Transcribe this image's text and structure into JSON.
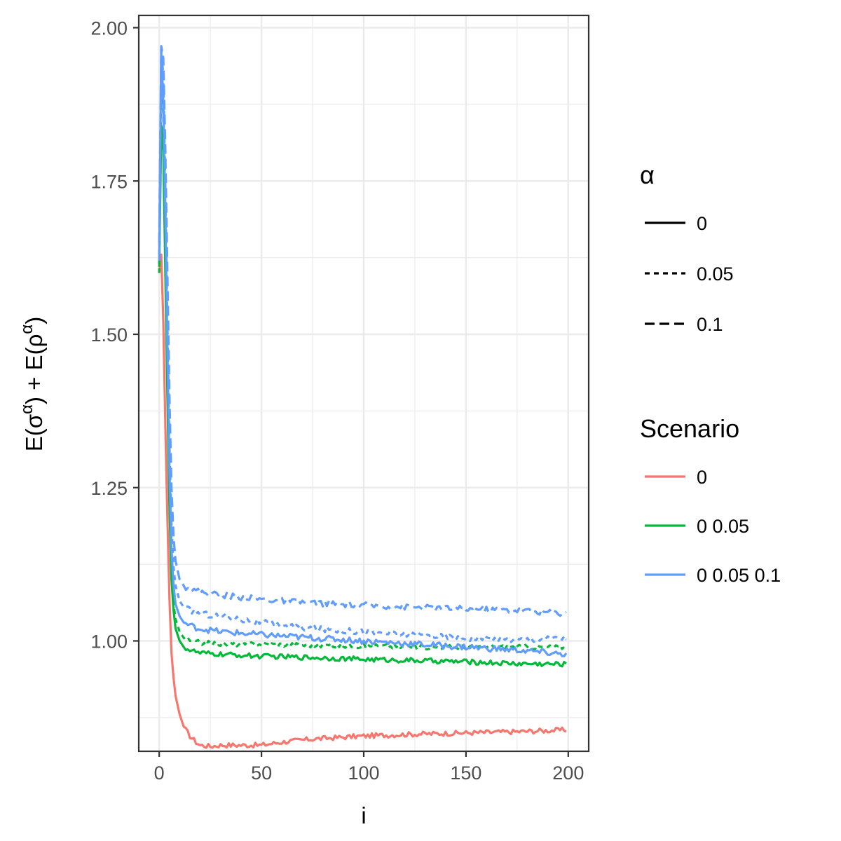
{
  "chart_data": {
    "type": "line",
    "xlabel": "i",
    "ylabel": "E(σ^α) + E(ρ^α)",
    "xlim": [
      -10,
      210
    ],
    "ylim": [
      0.82,
      2.02
    ],
    "x_ticks": [
      0,
      50,
      100,
      150,
      200
    ],
    "x_tick_labels": [
      "0",
      "50",
      "100",
      "150",
      "200"
    ],
    "y_ticks": [
      1.0,
      1.25,
      1.5,
      1.75,
      2.0
    ],
    "y_tick_labels": [
      "1.00",
      "1.25",
      "1.50",
      "1.75",
      "2.00"
    ],
    "grid": true,
    "legend_placement": "right",
    "legends": [
      {
        "title": "α",
        "entries": [
          {
            "label": "0",
            "dash": "solid"
          },
          {
            "label": "0.05",
            "dash": "dotted"
          },
          {
            "label": "0.1",
            "dash": "dashed"
          }
        ]
      },
      {
        "title": "Scenario",
        "entries": [
          {
            "label": "0",
            "color": "#F8766D"
          },
          {
            "label": "0 0.05",
            "color": "#00BA38"
          },
          {
            "label": "0 0.05 0.1",
            "color": "#619CFF"
          }
        ]
      }
    ],
    "series": [
      {
        "scenario": "0",
        "alpha": "0",
        "color": "#F8766D",
        "dash": "solid",
        "x": [
          0,
          1,
          2,
          3,
          4,
          5,
          6,
          7,
          8,
          10,
          12,
          15,
          18,
          20,
          25,
          30,
          40,
          50,
          60,
          75,
          100,
          125,
          150,
          175,
          199
        ],
        "y": [
          1.6,
          1.63,
          1.52,
          1.35,
          1.2,
          1.07,
          0.98,
          0.94,
          0.91,
          0.88,
          0.86,
          0.845,
          0.835,
          0.83,
          0.828,
          0.83,
          0.83,
          0.83,
          0.835,
          0.84,
          0.845,
          0.848,
          0.85,
          0.852,
          0.855
        ],
        "noise": 0.004
      },
      {
        "scenario": "0 0.05",
        "alpha": "0",
        "color": "#00BA38",
        "dash": "solid",
        "x": [
          0,
          1,
          2,
          3,
          4,
          5,
          6,
          7,
          8,
          10,
          12,
          15,
          20,
          30,
          50,
          75,
          100,
          125,
          150,
          175,
          199
        ],
        "y": [
          1.61,
          1.84,
          1.8,
          1.6,
          1.4,
          1.22,
          1.1,
          1.05,
          1.02,
          1.0,
          0.99,
          0.985,
          0.98,
          0.978,
          0.975,
          0.973,
          0.97,
          0.968,
          0.966,
          0.963,
          0.962
        ],
        "noise": 0.004
      },
      {
        "scenario": "0 0.05",
        "alpha": "0.05",
        "color": "#00BA38",
        "dash": "dotted",
        "x": [
          0,
          1,
          2,
          3,
          4,
          5,
          6,
          7,
          8,
          10,
          12,
          15,
          20,
          30,
          50,
          75,
          100,
          125,
          150,
          175,
          199
        ],
        "y": [
          1.6,
          1.92,
          1.86,
          1.66,
          1.44,
          1.25,
          1.12,
          1.06,
          1.035,
          1.015,
          1.005,
          1.0,
          0.997,
          0.995,
          0.995,
          0.993,
          0.992,
          0.99,
          0.99,
          0.99,
          0.99
        ],
        "noise": 0.004
      },
      {
        "scenario": "0 0.05 0.1",
        "alpha": "0",
        "color": "#619CFF",
        "dash": "solid",
        "x": [
          0,
          1,
          2,
          3,
          4,
          5,
          6,
          7,
          8,
          10,
          12,
          15,
          20,
          30,
          50,
          75,
          100,
          125,
          150,
          175,
          199
        ],
        "y": [
          1.62,
          1.96,
          1.88,
          1.7,
          1.48,
          1.28,
          1.15,
          1.09,
          1.06,
          1.04,
          1.03,
          1.025,
          1.02,
          1.015,
          1.01,
          1.005,
          1.0,
          0.995,
          0.99,
          0.985,
          0.978
        ],
        "noise": 0.005
      },
      {
        "scenario": "0 0.05 0.1",
        "alpha": "0.05",
        "color": "#619CFF",
        "dash": "dotted",
        "x": [
          0,
          1,
          2,
          3,
          4,
          5,
          6,
          7,
          8,
          10,
          12,
          15,
          20,
          30,
          50,
          75,
          100,
          125,
          150,
          175,
          199
        ],
        "y": [
          1.63,
          1.97,
          1.92,
          1.74,
          1.52,
          1.32,
          1.19,
          1.12,
          1.09,
          1.065,
          1.055,
          1.05,
          1.045,
          1.04,
          1.03,
          1.02,
          1.015,
          1.01,
          1.005,
          1.002,
          1.005
        ],
        "noise": 0.005
      },
      {
        "scenario": "0 0.05 0.1",
        "alpha": "0.1",
        "color": "#619CFF",
        "dash": "dashed",
        "x": [
          0,
          1,
          2,
          3,
          4,
          5,
          6,
          7,
          8,
          10,
          12,
          15,
          20,
          30,
          50,
          75,
          100,
          125,
          150,
          175,
          199
        ],
        "y": [
          1.65,
          1.97,
          1.95,
          1.8,
          1.6,
          1.4,
          1.25,
          1.17,
          1.13,
          1.1,
          1.09,
          1.085,
          1.08,
          1.075,
          1.068,
          1.062,
          1.058,
          1.055,
          1.052,
          1.05,
          1.045
        ],
        "noise": 0.005
      }
    ]
  }
}
